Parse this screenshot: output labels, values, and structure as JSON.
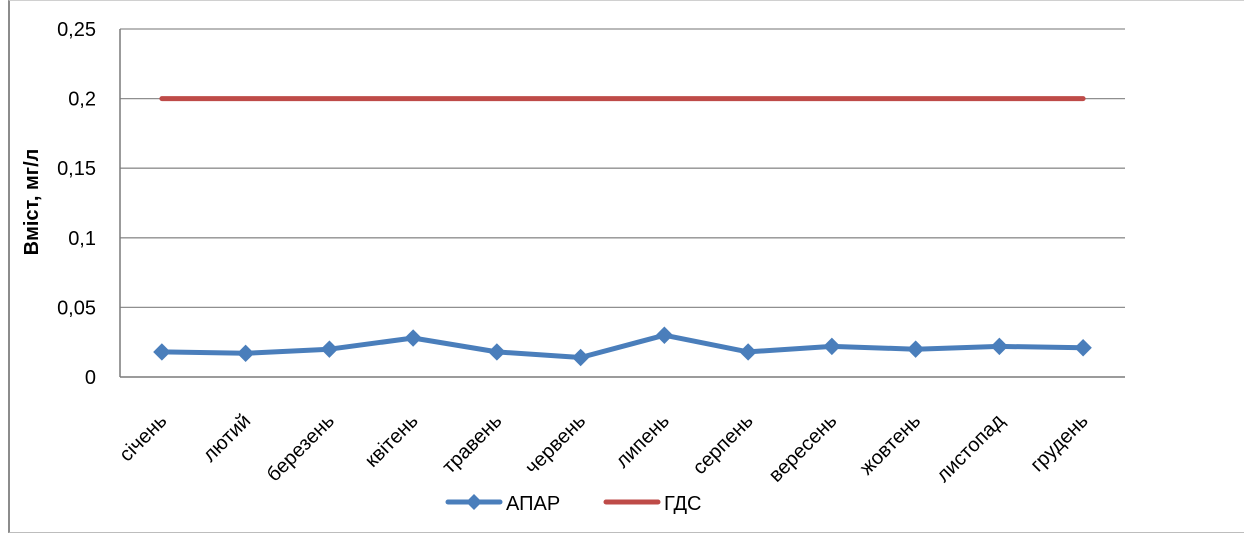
{
  "chart_data": {
    "type": "line",
    "title": "",
    "xlabel": "",
    "ylabel": "Вміст, мг/л",
    "ylim": [
      0,
      0.25
    ],
    "yticks": [
      "0",
      "0,05",
      "0,1",
      "0,15",
      "0,2",
      "0,25"
    ],
    "grid": true,
    "legend": "bottom",
    "categories": [
      "січень",
      "лютий",
      "березень",
      "квітень",
      "травень",
      "червень",
      "липень",
      "серпень",
      "вересень",
      "жовтень",
      "листопад",
      "грудень"
    ],
    "series": [
      {
        "name": "АПАР",
        "color": "#4a7ebb",
        "marker": "diamond",
        "values": [
          0.018,
          0.017,
          0.02,
          0.028,
          0.018,
          0.014,
          0.03,
          0.018,
          0.022,
          0.02,
          0.022,
          0.021
        ]
      },
      {
        "name": "ГДС",
        "color": "#be4b48",
        "marker": "none",
        "values": [
          0.2,
          0.2,
          0.2,
          0.2,
          0.2,
          0.2,
          0.2,
          0.2,
          0.2,
          0.2,
          0.2,
          0.2
        ]
      }
    ]
  }
}
